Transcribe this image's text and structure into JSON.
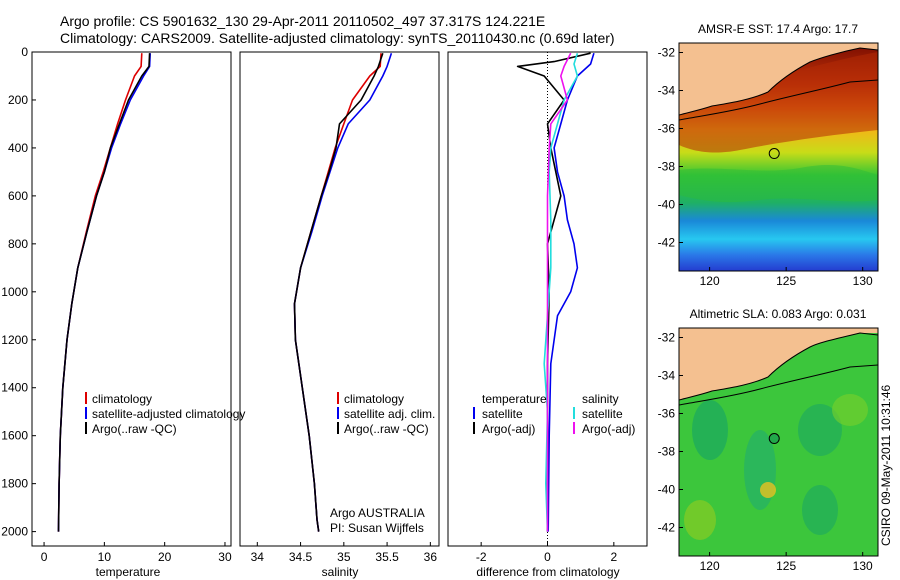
{
  "header": {
    "line1": "Argo profile: CS 5901632_130 29-Apr-2011 20110502_497 37.317S 124.221E",
    "line2": "Climatology: CARS2009. Satellite-adjusted climatology: synTS_20110430.nc (0.69d later)"
  },
  "side_label": "CSIRO 09-May-2011 10:31:46",
  "colors": {
    "climatology": "#dd0000",
    "satellite": "#0000ee",
    "argo": "#000000",
    "sat_salinity": "#22dddd",
    "argo_salinity": "#ee11ee",
    "land": "#f4c090"
  },
  "chart_data": [
    {
      "type": "line",
      "xlabel": "temperature",
      "ylabel": "",
      "xlim": [
        -2,
        31
      ],
      "ylim": [
        2060,
        0
      ],
      "xticks": [
        0,
        10,
        20,
        30
      ],
      "yticks": [
        0,
        200,
        400,
        600,
        800,
        1000,
        1200,
        1400,
        1600,
        1800,
        2000
      ],
      "legend": [
        "climatology",
        "satellite-adjusted climatology",
        "Argo(..raw -QC)"
      ],
      "series": [
        {
          "name": "climatology",
          "color": "#dd0000",
          "x": [
            16.2,
            16.1,
            15.0,
            13.5,
            12.2,
            11.0,
            9.8,
            8.5,
            7.0,
            5.6,
            4.6,
            3.8,
            3.1,
            2.7,
            2.5,
            2.4
          ],
          "y": [
            5,
            60,
            100,
            200,
            300,
            400,
            500,
            600,
            750,
            900,
            1050,
            1200,
            1400,
            1600,
            1800,
            2000
          ]
        },
        {
          "name": "satellite-adjusted climatology",
          "color": "#0000ee",
          "x": [
            17.6,
            17.5,
            16.5,
            14.3,
            12.7,
            11.2,
            10.0,
            8.7,
            7.1,
            5.6,
            4.6,
            3.8,
            3.1,
            2.7,
            2.5,
            2.4
          ],
          "y": [
            5,
            60,
            100,
            200,
            300,
            400,
            500,
            600,
            750,
            900,
            1050,
            1200,
            1400,
            1600,
            1800,
            2000
          ]
        },
        {
          "name": "Argo(..raw -QC)",
          "color": "#000000",
          "x": [
            17.5,
            17.4,
            16.2,
            14.0,
            12.5,
            11.0,
            10.0,
            8.7,
            7.1,
            5.6,
            4.6,
            3.8,
            3.1,
            2.7,
            2.5,
            2.4
          ],
          "y": [
            5,
            60,
            100,
            200,
            300,
            400,
            500,
            600,
            750,
            900,
            1050,
            1200,
            1400,
            1600,
            1800,
            2000
          ]
        }
      ]
    },
    {
      "type": "line",
      "xlabel": "salinity",
      "ylabel": "",
      "xlim": [
        33.8,
        36.1
      ],
      "ylim": [
        2060,
        0
      ],
      "xticks": [
        34,
        34.5,
        35,
        35.5,
        36
      ],
      "legend": [
        "climatology",
        "satellite adj. clim.",
        "Argo(..raw -QC)"
      ],
      "annotation": [
        "Argo AUSTRALIA",
        "PI: Susan Wijffels"
      ],
      "series": [
        {
          "name": "climatology",
          "color": "#dd0000",
          "x": [
            35.43,
            35.42,
            35.3,
            35.1,
            35.0,
            34.9,
            34.82,
            34.74,
            34.62,
            34.5,
            34.43,
            34.44,
            34.52,
            34.6,
            34.66,
            34.69,
            34.71
          ],
          "y": [
            5,
            60,
            100,
            200,
            300,
            400,
            500,
            600,
            750,
            900,
            1050,
            1200,
            1400,
            1600,
            1800,
            1950,
            2000
          ]
        },
        {
          "name": "satellite adj. clim.",
          "color": "#0000ee",
          "x": [
            35.55,
            35.5,
            35.45,
            35.3,
            35.05,
            34.93,
            34.84,
            34.75,
            34.63,
            34.5,
            34.43,
            34.44,
            34.52,
            34.6,
            34.66,
            34.69,
            34.71
          ],
          "y": [
            5,
            60,
            100,
            200,
            300,
            400,
            500,
            600,
            750,
            900,
            1050,
            1200,
            1400,
            1600,
            1800,
            1950,
            2000
          ]
        },
        {
          "name": "Argo(..raw -QC)",
          "color": "#000000",
          "x": [
            35.45,
            35.4,
            35.35,
            35.2,
            34.95,
            34.91,
            34.83,
            34.74,
            34.62,
            34.5,
            34.43,
            34.44,
            34.52,
            34.6,
            34.66,
            34.69,
            34.71
          ],
          "y": [
            5,
            60,
            100,
            200,
            300,
            400,
            500,
            600,
            750,
            900,
            1050,
            1200,
            1400,
            1600,
            1800,
            1950,
            2000
          ]
        }
      ]
    },
    {
      "type": "line",
      "xlabel": "difference from climatology",
      "ylabel": "",
      "xlim": [
        -3,
        3
      ],
      "ylim": [
        2060,
        0
      ],
      "xticks": [
        -2,
        0,
        2
      ],
      "legend_groups": [
        {
          "title": "temperature",
          "entries": [
            "satellite",
            "Argo(-adj)"
          ]
        },
        {
          "title": "salinity",
          "entries": [
            "satellite",
            "Argo(-adj)"
          ]
        }
      ],
      "series": [
        {
          "name": "satellite",
          "group": "temperature",
          "color": "#0000ee",
          "x": [
            1.4,
            1.3,
            0.9,
            0.6,
            0.4,
            0.2,
            0.3,
            0.5,
            0.6,
            0.8,
            0.9,
            0.7,
            0.3,
            0.1,
            0.05,
            0.02
          ],
          "y": [
            5,
            50,
            100,
            200,
            300,
            400,
            500,
            600,
            700,
            800,
            900,
            1000,
            1100,
            1300,
            1600,
            2000
          ]
        },
        {
          "name": "Argo(-adj)",
          "group": "temperature",
          "color": "#000000",
          "x": [
            1.3,
            0.2,
            -0.9,
            -0.1,
            0.5,
            0.0,
            0.1,
            0.4,
            0.0,
            0.05,
            0.0,
            0.0,
            0.0
          ],
          "y": [
            5,
            40,
            60,
            100,
            200,
            300,
            400,
            600,
            800,
            1000,
            1300,
            1600,
            2000
          ]
        },
        {
          "name": "satellite",
          "group": "salinity",
          "color": "#22dddd",
          "x": [
            0.9,
            0.8,
            0.9,
            0.5,
            0.3,
            0.1,
            0.05,
            0.1,
            0.1,
            0.0,
            -0.1,
            0.0,
            -0.05,
            0.0
          ],
          "y": [
            5,
            50,
            100,
            200,
            300,
            400,
            500,
            700,
            900,
            1100,
            1300,
            1500,
            1800,
            2000
          ]
        },
        {
          "name": "Argo(-adj)",
          "group": "salinity",
          "color": "#ee11ee",
          "x": [
            0.7,
            0.5,
            0.4,
            0.6,
            0.1,
            0.05,
            0.0,
            0.0,
            0.0
          ],
          "y": [
            5,
            60,
            100,
            200,
            300,
            400,
            600,
            1000,
            2000
          ]
        }
      ]
    },
    {
      "type": "heatmap",
      "title": "AMSR-E SST: 17.4 Argo: 17.7",
      "xlim": [
        118,
        131
      ],
      "ylim": [
        -43.5,
        -31.5
      ],
      "xticks": [
        120,
        125,
        130
      ],
      "yticks": [
        -32,
        -34,
        -36,
        -38,
        -40,
        -42
      ],
      "marker": {
        "lon": 124.221,
        "lat": -37.317
      }
    },
    {
      "type": "heatmap",
      "title": "Altimetric SLA: 0.083 Argo: 0.031",
      "xlim": [
        118,
        131
      ],
      "ylim": [
        -43.5,
        -31.5
      ],
      "xticks": [
        120,
        125,
        130
      ],
      "yticks": [
        -32,
        -34,
        -36,
        -38,
        -40,
        -42
      ],
      "marker": {
        "lon": 124.221,
        "lat": -37.317
      }
    }
  ]
}
